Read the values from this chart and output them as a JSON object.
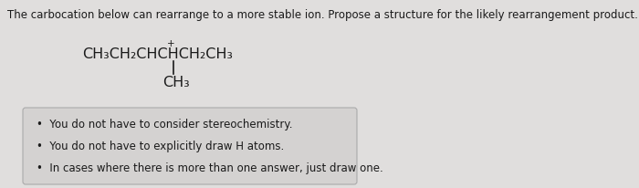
{
  "background_color": "#e0dedd",
  "title_text": "The carbocation below can rearrange to a more stable ion. Propose a structure for the likely rearrangement product.",
  "title_fontsize": 8.5,
  "title_color": "#1a1a1a",
  "bullet_points": [
    "You do not have to consider stereochemistry.",
    "You do not have to explicitly draw H atoms.",
    "In cases where there is more than one answer, just draw one."
  ],
  "bullet_fontsize": 8.5,
  "box_facecolor": "#d4d2d1",
  "box_edgecolor": "#aaaaaa",
  "text_color": "#1a1a1a",
  "struct_fontsize": 11.5,
  "plus_fontsize": 7.5
}
